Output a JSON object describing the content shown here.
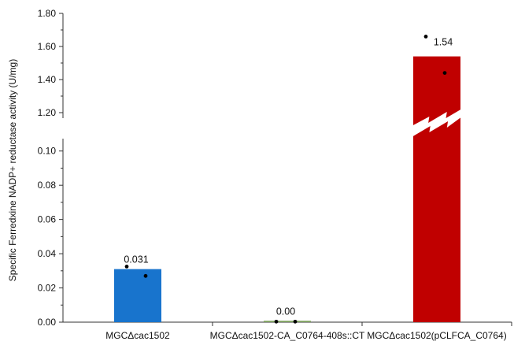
{
  "chart_data": {
    "type": "bar",
    "ylabel": "Specific Ferredxine NADP+ reductase activity (U/mg)",
    "xlabel": "",
    "axis_break": true,
    "lower_ylim": [
      0,
      0.11
    ],
    "upper_ylim": [
      1.2,
      1.8
    ],
    "lower_ticks": [
      "0.00",
      "0.02",
      "0.04",
      "0.06",
      "0.08",
      "0.10"
    ],
    "upper_ticks": [
      "1.20",
      "1.40",
      "1.60",
      "1.80"
    ],
    "categories": [
      "MGCΔcac1502",
      "MGCΔcac1502-CA_C0764-408s::CT",
      "MGCΔcac1502(pCLFCA_C0764)"
    ],
    "values": [
      0.031,
      0.0008,
      1.54
    ],
    "value_labels": [
      "0.031",
      "0.00",
      "1.54"
    ],
    "colors": [
      "#1874cd",
      "#7ba05b",
      "#c00000"
    ],
    "points": [
      [
        0.0325,
        0.027
      ],
      [
        0.0003,
        0.0003
      ],
      [
        1.66,
        1.44
      ]
    ],
    "grid": false
  }
}
